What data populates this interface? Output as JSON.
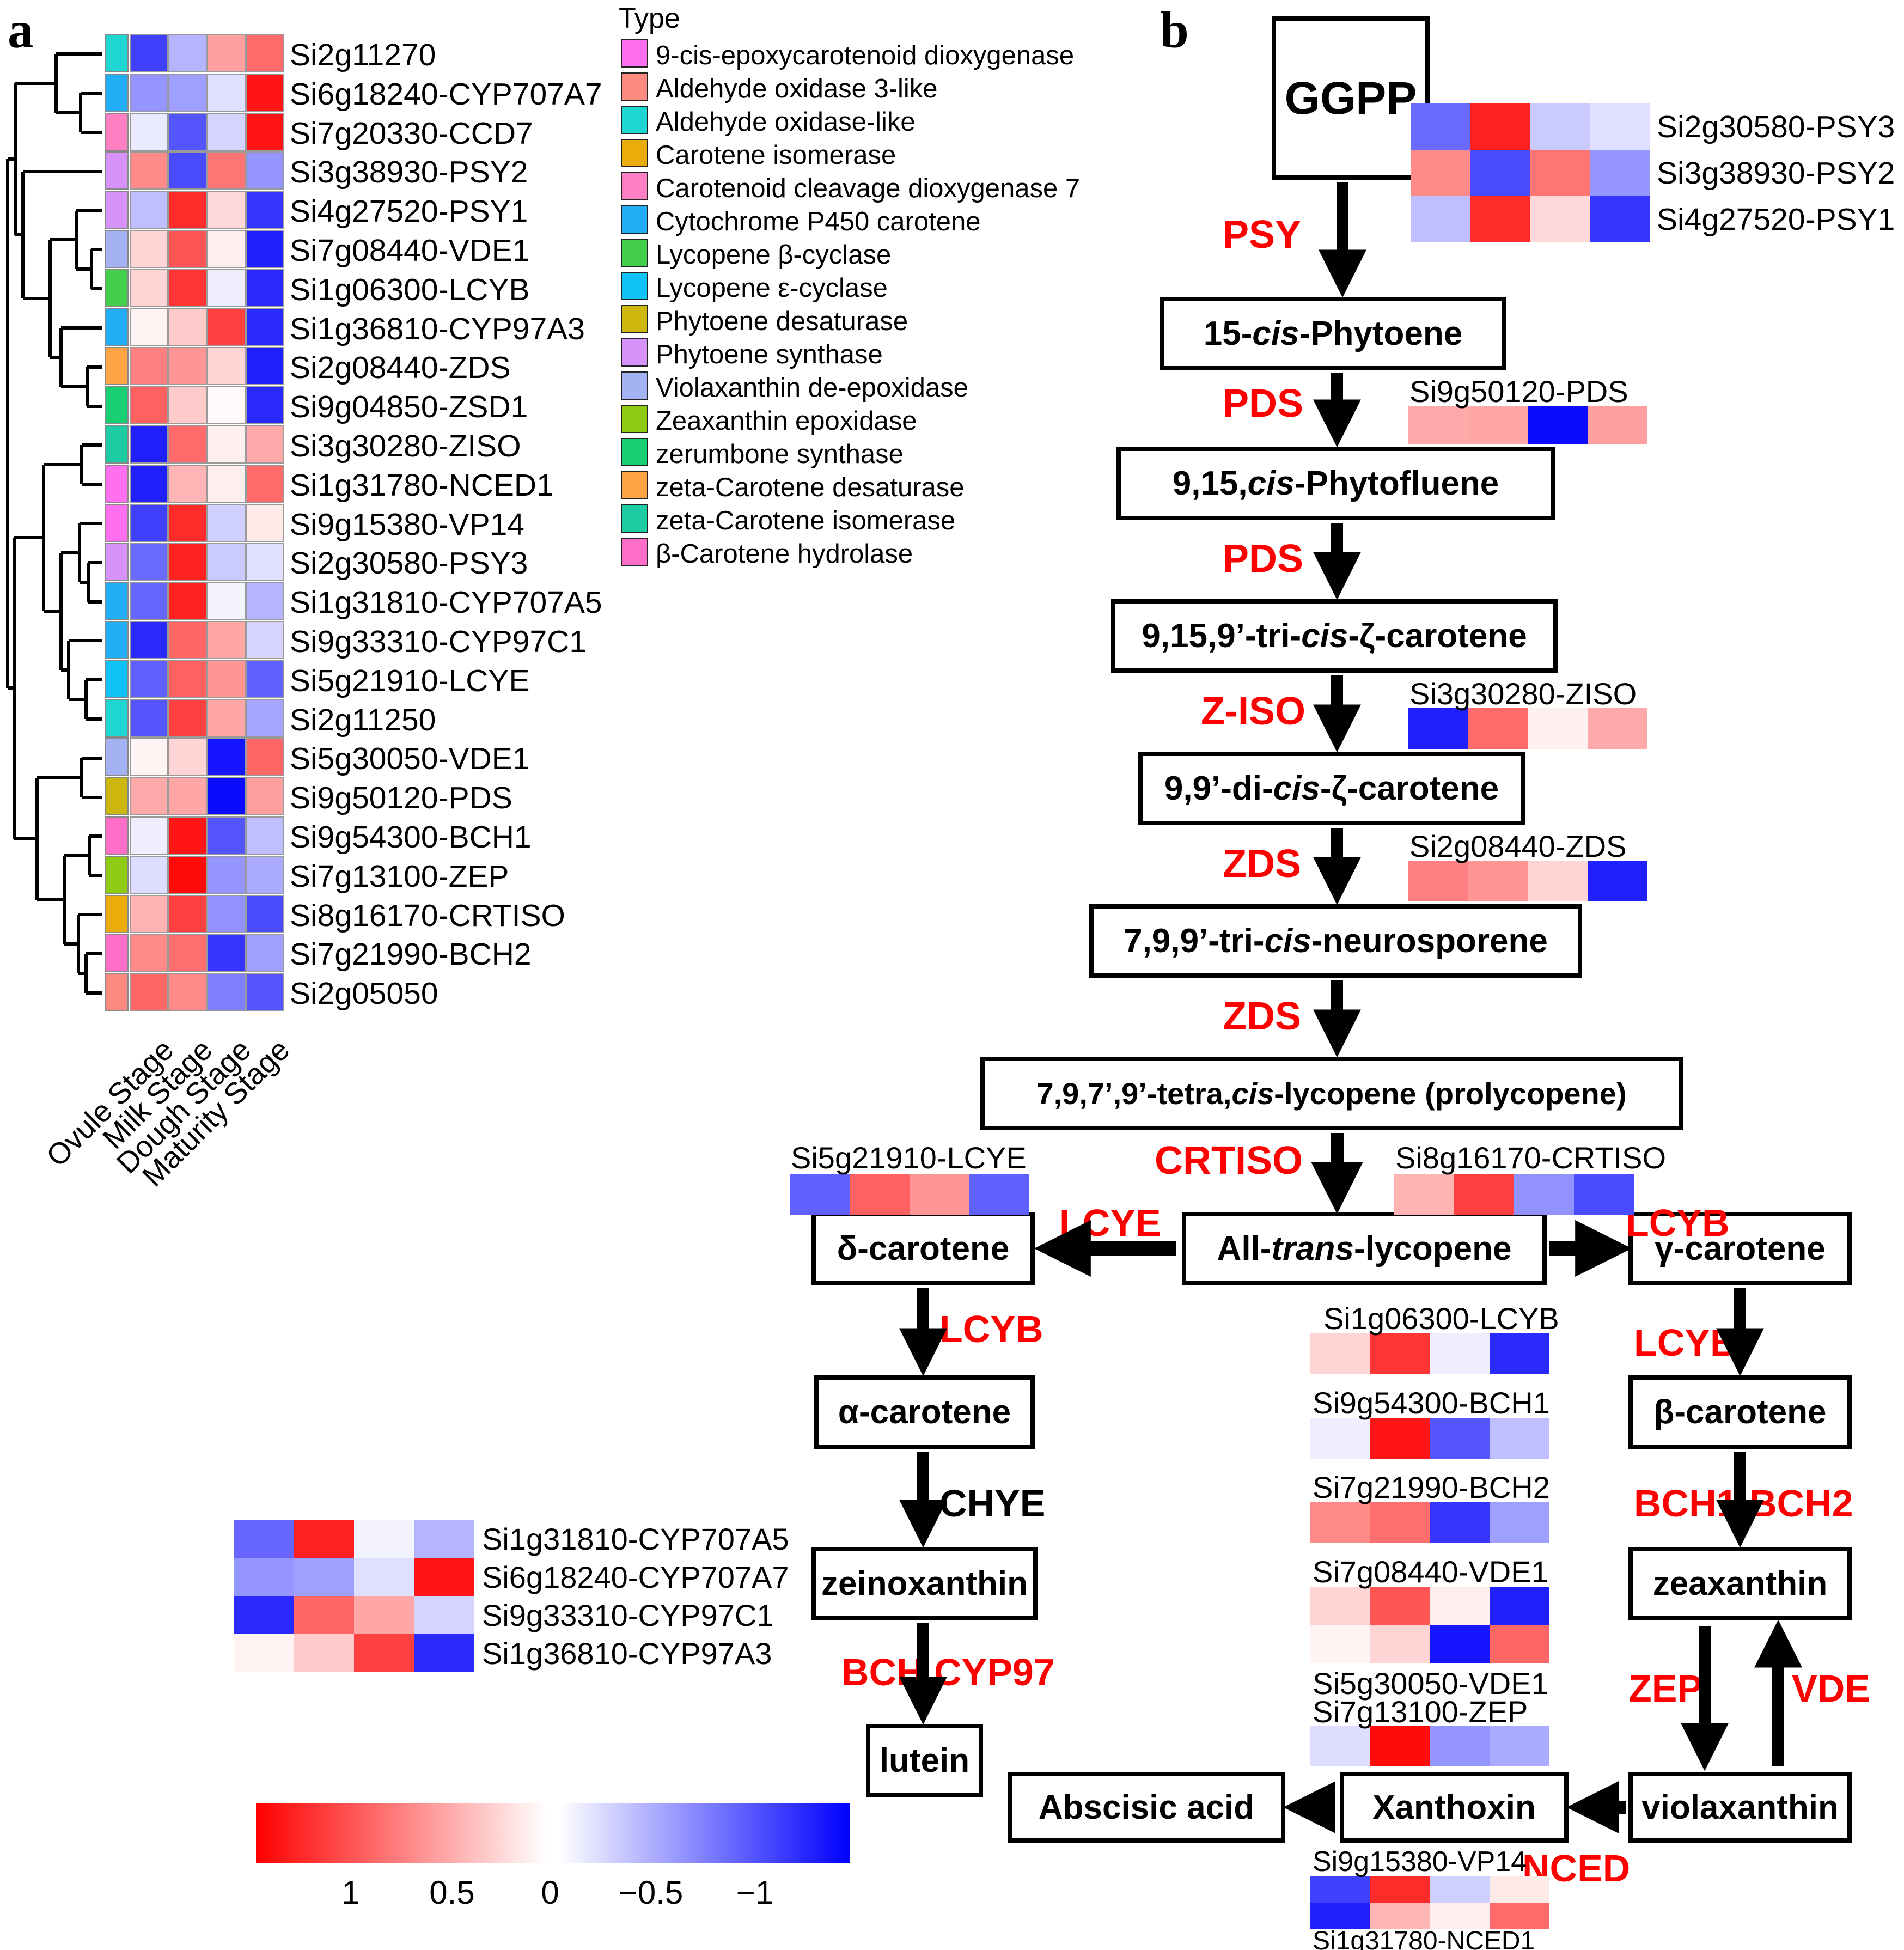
{
  "figure": {
    "panel_a_label": "a",
    "panel_b_label": "b"
  },
  "heatmap": {
    "legend_title": "Type",
    "stages": [
      "Ovule Stage",
      "Milk Stage",
      "Dough Stage",
      "Maturity Stage"
    ],
    "types": [
      {
        "name": "9-cis-epoxycarotenoid dioxygenase",
        "color": "#FF6FF0"
      },
      {
        "name": "Aldehyde oxidase 3-like",
        "color": "#FB8A80"
      },
      {
        "name": "Aldehyde oxidase-like",
        "color": "#1FD6D2"
      },
      {
        "name": "Carotene isomerase",
        "color": "#E9AC0B"
      },
      {
        "name": "Carotenoid cleavage dioxygenase 7",
        "color": "#FF80C2"
      },
      {
        "name": "Cytochrome P450 carotene",
        "color": "#22AEF5"
      },
      {
        "name": "Lycopene β-cyclase",
        "color": "#44CE4E"
      },
      {
        "name": "Lycopene ε-cyclase",
        "color": "#0FC3F7"
      },
      {
        "name": "Phytoene desaturase",
        "color": "#CDB70E"
      },
      {
        "name": "Phytoene synthase",
        "color": "#D792FA"
      },
      {
        "name": "Violaxanthin de-epoxidase",
        "color": "#A4B1F2"
      },
      {
        "name": "Zeaxanthin epoxidase",
        "color": "#8FCB12"
      },
      {
        "name": "zerumbone synthase",
        "color": "#19CE73"
      },
      {
        "name": "zeta-Carotene desaturase",
        "color": "#FFA444"
      },
      {
        "name": "zeta-Carotene isomerase",
        "color": "#1ECCA4"
      },
      {
        "name": "β-Carotene hydrolase",
        "color": "#FF6EC7"
      }
    ],
    "colorbar_ticks": [
      "1",
      "0.5",
      "0",
      "−0.5",
      "−1"
    ]
  },
  "chart_data": {
    "type": "heatmap",
    "x_categories": [
      "Ovule Stage",
      "Milk Stage",
      "Dough Stage",
      "Maturity Stage"
    ],
    "value_scale": {
      "colormap": "red-white-blue",
      "ticks": [
        1,
        0.5,
        0,
        -0.5,
        -1
      ],
      "clamp": [
        -1.2,
        1.2
      ]
    },
    "rows": [
      {
        "name": "Si2g11270",
        "type": "Aldehyde oxidase-like",
        "values": [
          -0.9,
          -0.35,
          0.45,
          0.7
        ]
      },
      {
        "name": "Si6g18240-CYP707A7",
        "type": "Cytochrome P450 carotene",
        "values": [
          -0.5,
          -0.45,
          -0.15,
          1.1
        ]
      },
      {
        "name": "Si7g20330-CCD7",
        "type": "Carotenoid cleavage dioxygenase 7",
        "values": [
          -0.1,
          -0.8,
          -0.2,
          1.1
        ]
      },
      {
        "name": "Si3g38930-PSY2",
        "type": "Phytoene synthase",
        "values": [
          0.55,
          -0.85,
          0.65,
          -0.5
        ]
      },
      {
        "name": "Si4g27520-PSY1",
        "type": "Phytoene synthase",
        "values": [
          -0.3,
          1.0,
          0.18,
          -0.95
        ]
      },
      {
        "name": "Si7g08440-VDE1",
        "type": "Violaxanthin de-epoxidase",
        "values": [
          0.2,
          0.8,
          0.08,
          -1.05
        ]
      },
      {
        "name": "Si1g06300-LCYB",
        "type": "Lycopene β-cyclase",
        "values": [
          0.2,
          0.95,
          -0.08,
          -1.0
        ]
      },
      {
        "name": "Si1g36810-CYP97A3",
        "type": "Cytochrome P450 carotene",
        "values": [
          0.06,
          0.25,
          0.9,
          -1.0
        ]
      },
      {
        "name": "Si2g08440-ZDS",
        "type": "zeta-Carotene desaturase",
        "values": [
          0.6,
          0.5,
          0.2,
          -1.05
        ]
      },
      {
        "name": "Si9g04850-ZSD1",
        "type": "zerumbone synthase",
        "values": [
          0.75,
          0.25,
          0.03,
          -1.0
        ]
      },
      {
        "name": "Si3g30280-ZISO",
        "type": "zeta-Carotene isomerase",
        "values": [
          -1.05,
          0.7,
          0.07,
          0.4
        ]
      },
      {
        "name": "Si1g31780-NCED1",
        "type": "9-cis-epoxycarotenoid dioxygenase",
        "values": [
          -1.05,
          0.35,
          0.08,
          0.7
        ]
      },
      {
        "name": "Si9g15380-VP14",
        "type": "9-cis-epoxycarotenoid dioxygenase",
        "values": [
          -0.9,
          1.0,
          -0.22,
          0.1
        ]
      },
      {
        "name": "Si2g30580-PSY3",
        "type": "Phytoene synthase",
        "values": [
          -0.7,
          1.05,
          -0.25,
          -0.15
        ]
      },
      {
        "name": "Si1g31810-CYP707A5",
        "type": "Cytochrome P450 carotene",
        "values": [
          -0.72,
          1.05,
          -0.05,
          -0.35
        ]
      },
      {
        "name": "Si9g33310-CYP97C1",
        "type": "Cytochrome P450 carotene",
        "values": [
          -1.0,
          0.72,
          0.42,
          -0.2
        ]
      },
      {
        "name": "Si5g21910-LCYE",
        "type": "Lycopene ε-cyclase",
        "values": [
          -0.75,
          0.75,
          0.5,
          -0.75
        ]
      },
      {
        "name": "Si2g11250",
        "type": "Aldehyde oxidase-like",
        "values": [
          -0.8,
          0.9,
          0.42,
          -0.42
        ]
      },
      {
        "name": "Si5g30050-VDE1",
        "type": "Violaxanthin de-epoxidase",
        "values": [
          0.05,
          0.2,
          -1.1,
          0.72
        ]
      },
      {
        "name": "Si9g50120-PDS",
        "type": "Phytoene desaturase",
        "values": [
          0.4,
          0.42,
          -1.15,
          0.45
        ]
      },
      {
        "name": "Si9g54300-BCH1",
        "type": "β-Carotene hydrolase",
        "values": [
          -0.08,
          1.1,
          -0.8,
          -0.3
        ]
      },
      {
        "name": "Si7g13100-ZEP",
        "type": "Zeaxanthin epoxidase",
        "values": [
          -0.16,
          1.15,
          -0.5,
          -0.4
        ]
      },
      {
        "name": "Si8g16170-CRTISO",
        "type": "Carotene isomerase",
        "values": [
          0.36,
          0.9,
          -0.52,
          -0.85
        ]
      },
      {
        "name": "Si7g21990-BCH2",
        "type": "β-Carotene hydrolase",
        "values": [
          0.55,
          0.68,
          -0.95,
          -0.45
        ]
      },
      {
        "name": "Si2g05050",
        "type": "Aldehyde oxidase 3-like",
        "values": [
          0.72,
          0.55,
          -0.6,
          -0.8
        ]
      }
    ],
    "dendrogram_segments": [
      [
        148,
        171,
        188,
        171
      ],
      [
        148,
        243,
        188,
        243
      ],
      [
        148,
        171,
        148,
        243
      ],
      [
        103,
        99,
        188,
        99
      ],
      [
        103,
        207,
        148,
        207
      ],
      [
        103,
        99,
        103,
        207
      ],
      [
        168,
        458,
        188,
        458
      ],
      [
        168,
        530,
        188,
        530
      ],
      [
        168,
        458,
        168,
        530
      ],
      [
        140,
        387,
        188,
        387
      ],
      [
        140,
        494,
        168,
        494
      ],
      [
        140,
        387,
        140,
        494
      ],
      [
        160,
        674,
        188,
        674
      ],
      [
        160,
        746,
        188,
        746
      ],
      [
        160,
        674,
        160,
        746
      ],
      [
        112,
        602,
        188,
        602
      ],
      [
        112,
        710,
        160,
        710
      ],
      [
        112,
        602,
        112,
        710
      ],
      [
        92,
        440,
        140,
        440
      ],
      [
        92,
        656,
        112,
        656
      ],
      [
        92,
        440,
        92,
        656
      ],
      [
        42,
        315,
        188,
        315
      ],
      [
        42,
        548,
        92,
        548
      ],
      [
        42,
        315,
        42,
        548
      ],
      [
        28,
        153,
        103,
        153
      ],
      [
        28,
        431,
        42,
        431
      ],
      [
        28,
        153,
        28,
        431
      ],
      [
        150,
        817,
        188,
        817
      ],
      [
        150,
        889,
        188,
        889
      ],
      [
        150,
        817,
        150,
        889
      ],
      [
        162,
        1033,
        188,
        1033
      ],
      [
        162,
        1105,
        188,
        1105
      ],
      [
        162,
        1033,
        162,
        1105
      ],
      [
        146,
        961,
        188,
        961
      ],
      [
        146,
        1069,
        162,
        1069
      ],
      [
        146,
        961,
        146,
        1069
      ],
      [
        158,
        1248,
        188,
        1248
      ],
      [
        158,
        1320,
        188,
        1320
      ],
      [
        158,
        1248,
        158,
        1320
      ],
      [
        126,
        1176,
        188,
        1176
      ],
      [
        126,
        1284,
        158,
        1284
      ],
      [
        126,
        1176,
        126,
        1284
      ],
      [
        112,
        1015,
        146,
        1015
      ],
      [
        112,
        1230,
        126,
        1230
      ],
      [
        112,
        1015,
        112,
        1230
      ],
      [
        80,
        853,
        150,
        853
      ],
      [
        80,
        1122,
        112,
        1122
      ],
      [
        80,
        853,
        80,
        1122
      ],
      [
        150,
        1392,
        188,
        1392
      ],
      [
        150,
        1464,
        188,
        1464
      ],
      [
        150,
        1392,
        150,
        1464
      ],
      [
        164,
        1535,
        188,
        1535
      ],
      [
        164,
        1607,
        188,
        1607
      ],
      [
        164,
        1535,
        164,
        1607
      ],
      [
        158,
        1751,
        188,
        1751
      ],
      [
        158,
        1823,
        188,
        1823
      ],
      [
        158,
        1751,
        158,
        1823
      ],
      [
        144,
        1679,
        188,
        1679
      ],
      [
        144,
        1787,
        158,
        1787
      ],
      [
        144,
        1679,
        144,
        1787
      ],
      [
        118,
        1571,
        164,
        1571
      ],
      [
        118,
        1733,
        144,
        1733
      ],
      [
        118,
        1571,
        118,
        1733
      ],
      [
        68,
        1428,
        150,
        1428
      ],
      [
        68,
        1652,
        118,
        1652
      ],
      [
        68,
        1428,
        68,
        1652
      ],
      [
        26,
        987,
        80,
        987
      ],
      [
        26,
        1540,
        68,
        1540
      ],
      [
        26,
        987,
        26,
        1540
      ],
      [
        14,
        292,
        28,
        292
      ],
      [
        14,
        1263,
        26,
        1263
      ],
      [
        14,
        292,
        14,
        1263
      ]
    ]
  },
  "pathway": {
    "nodes": [
      {
        "id": "ggpp",
        "html": "GGPP"
      },
      {
        "id": "phytoene",
        "html": "15-<i>cis</i>-Phytoene"
      },
      {
        "id": "phytofluene",
        "html": "9,15,<i>cis</i>-Phytofluene"
      },
      {
        "id": "tricis",
        "html": "9,15,9’-tri-<i>cis</i>-ζ-carotene"
      },
      {
        "id": "dicis",
        "html": "9,9’-di-<i>cis</i>-ζ-carotene"
      },
      {
        "id": "neuro",
        "html": "7,9,9’-tri-<i>cis</i>-neurosporene"
      },
      {
        "id": "prolyco",
        "html": "7,9,7’,9’-tetra,<i>cis</i>-lycopene (prolycopene)"
      },
      {
        "id": "delta",
        "html": "δ-carotene"
      },
      {
        "id": "alltrans",
        "html": "All- <i>trans</i>-lycopene"
      },
      {
        "id": "gamma",
        "html": "γ-carotene"
      },
      {
        "id": "alpha",
        "html": "α-carotene"
      },
      {
        "id": "beta",
        "html": "β-carotene"
      },
      {
        "id": "zeino",
        "html": "zeinoxanthin"
      },
      {
        "id": "zea",
        "html": "zeaxanthin"
      },
      {
        "id": "lutein",
        "html": "lutein"
      },
      {
        "id": "viola",
        "html": "violaxanthin"
      },
      {
        "id": "xantho",
        "html": "Xanthoxin"
      },
      {
        "id": "aba",
        "html": "Abscisic acid"
      }
    ],
    "enzymes": [
      {
        "id": "psy",
        "text": "PSY",
        "color": "#ff0000"
      },
      {
        "id": "pds1",
        "text": "PDS",
        "color": "#ff0000"
      },
      {
        "id": "pds2",
        "text": "PDS",
        "color": "#ff0000"
      },
      {
        "id": "ziso",
        "text": "Z-ISO",
        "color": "#ff0000"
      },
      {
        "id": "zds1",
        "text": "ZDS",
        "color": "#ff0000"
      },
      {
        "id": "zds2",
        "text": "ZDS",
        "color": "#ff0000"
      },
      {
        "id": "crtiso",
        "text": "CRTISO",
        "color": "#ff0000"
      },
      {
        "id": "lcye",
        "text": "LCYE",
        "color": "#ff0000"
      },
      {
        "id": "lcyb_r1",
        "text": "LCYB",
        "color": "#ff0000"
      },
      {
        "id": "lcyb_l",
        "text": "LCYB",
        "color": "#ff0000"
      },
      {
        "id": "lcyb_r2",
        "text": "LCYB",
        "color": "#ff0000"
      },
      {
        "id": "chye",
        "text": "CHYE",
        "color": "#000000"
      },
      {
        "id": "bch",
        "text": "BCH",
        "color": "#ff0000"
      },
      {
        "id": "cyp97",
        "text": "CYP97",
        "color": "#ff0000"
      },
      {
        "id": "bch1",
        "text": "BCH1",
        "color": "#ff0000"
      },
      {
        "id": "bch2",
        "text": "BCH2",
        "color": "#ff0000"
      },
      {
        "id": "zep",
        "text": "ZEP",
        "color": "#ff0000"
      },
      {
        "id": "vde",
        "text": "VDE",
        "color": "#ff0000"
      },
      {
        "id": "nced",
        "text": "NCED",
        "color": "#ff0000"
      }
    ],
    "gene_blocks": [
      {
        "id": "psy",
        "genes": [
          "Si2g30580-PSY3",
          "Si3g38930-PSY2",
          "Si4g27520-PSY1"
        ],
        "label_mode": "right"
      },
      {
        "id": "pds",
        "genes": [
          "Si9g50120-PDS"
        ],
        "label_mode": "above"
      },
      {
        "id": "ziso",
        "genes": [
          "Si3g30280-ZISO"
        ],
        "label_mode": "above"
      },
      {
        "id": "zds",
        "genes": [
          "Si2g08440-ZDS"
        ],
        "label_mode": "above"
      },
      {
        "id": "lcye",
        "genes": [
          "Si5g21910-LCYE"
        ],
        "label_mode": "above"
      },
      {
        "id": "crtiso",
        "genes": [
          "Si8g16170-CRTISO"
        ],
        "label_mode": "above"
      },
      {
        "id": "lcyb",
        "genes": [
          "Si1g06300-LCYB"
        ],
        "label_mode": "above"
      },
      {
        "id": "bch1",
        "genes": [
          "Si9g54300-BCH1"
        ],
        "label_mode": "above"
      },
      {
        "id": "bch2",
        "genes": [
          "Si7g21990-BCH2"
        ],
        "label_mode": "above"
      },
      {
        "id": "vde",
        "genes": [
          "Si7g08440-VDE1",
          "Si5g30050-VDE1"
        ],
        "label_mode": "above-below"
      },
      {
        "id": "zepb",
        "genes": [
          "Si7g13100-ZEP"
        ],
        "label_mode": "above"
      },
      {
        "id": "vp14",
        "genes": [
          "Si9g15380-VP14",
          "Si1g31780-NCED1"
        ],
        "label_mode": "above-below"
      },
      {
        "id": "extra",
        "genes": [
          "Si1g31810-CYP707A5",
          "Si6g18240-CYP707A7",
          "Si9g33310-CYP97C1",
          "Si1g36810-CYP97A3"
        ],
        "label_mode": "right"
      }
    ]
  }
}
